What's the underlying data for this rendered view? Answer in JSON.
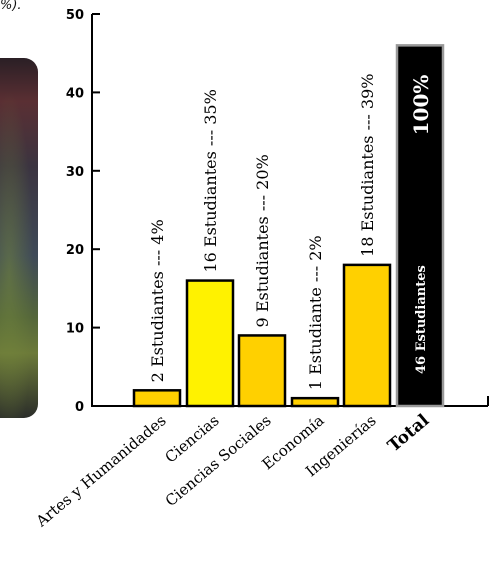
{
  "caption_fragment": "%).",
  "chart_data": {
    "type": "bar",
    "categories": [
      "Artes y Humanidades",
      "Ciencias",
      "Ciencias Sociales",
      "Economía",
      "Ingenierías",
      "Total"
    ],
    "values": [
      2,
      16,
      9,
      1,
      18,
      46
    ],
    "data_labels": [
      "2 Estudiantes --- 4%",
      "16 Estudiantes --- 35%",
      "9 Estudiantes --- 20%",
      "1 Estudiante --- 2%",
      "18 Estudiantes --- 39%",
      "46 Estudiantes"
    ],
    "total_percent_label": "100%",
    "yticks": [
      "0",
      "10",
      "20",
      "30",
      "40",
      "50"
    ],
    "ylim": [
      0,
      50
    ],
    "colors": [
      "#ffd000",
      "#fff200",
      "#ffd000",
      "#ffd000",
      "#ffd000",
      "#000000"
    ],
    "total_border_color": "#999999"
  }
}
